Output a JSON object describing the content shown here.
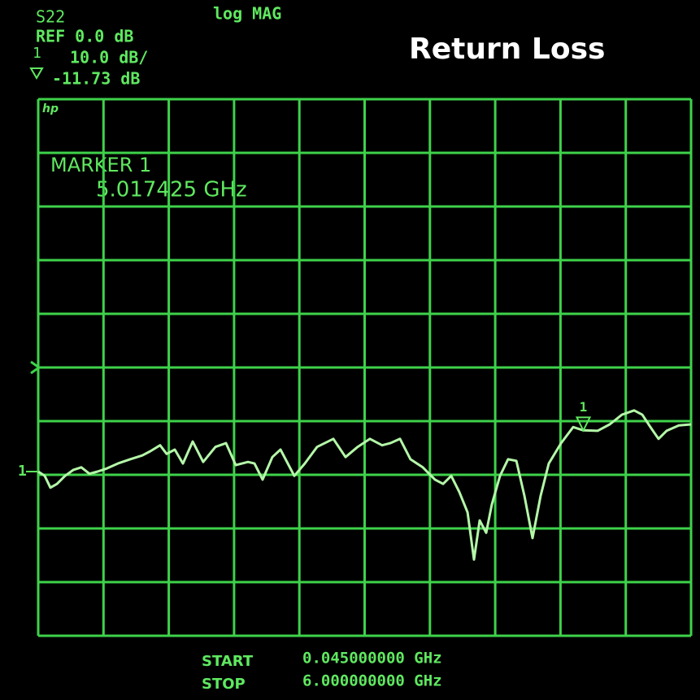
{
  "chart_data": {
    "type": "line",
    "title": "Return Loss",
    "parameter": "S22",
    "format": "log MAG",
    "reference": "REF 0.0 dB",
    "channel": "1",
    "scale": "10.0 dB/",
    "marker_readout": "-11.73 dB",
    "logo": "hp",
    "marker_title": "MARKER 1",
    "marker_frequency": "5.017425 GHz",
    "start_label": "START",
    "start_value": "0.045000000 GHz",
    "stop_label": "STOP",
    "stop_value": "6.000000000 GHz",
    "trace_label": "1",
    "color": "#b4f7a8",
    "grid_color": "#3ed24a",
    "xlim": [
      0.045,
      6.0
    ],
    "ylim": [
      -50,
      50
    ],
    "reference_level": 0,
    "marker": {
      "label": "1",
      "x": 5.017425,
      "value": -11.73
    },
    "x": [
      0.045,
      0.104,
      0.156,
      0.216,
      0.29,
      0.364,
      0.438,
      0.512,
      0.586,
      0.661,
      0.772,
      0.883,
      0.994,
      1.068,
      1.157,
      1.217,
      1.291,
      1.365,
      1.454,
      1.55,
      1.662,
      1.758,
      1.847,
      1.958,
      2.018,
      2.092,
      2.181,
      2.255,
      2.381,
      2.477,
      2.589,
      2.737,
      2.848,
      2.959,
      3.071,
      3.182,
      3.256,
      3.345,
      3.441,
      3.553,
      3.664,
      3.738,
      3.812,
      3.886,
      3.961,
      4.02,
      4.072,
      4.131,
      4.183,
      4.257,
      4.331,
      4.406,
      4.48,
      4.554,
      4.628,
      4.702,
      4.814,
      4.925,
      5.014,
      5.147,
      5.258,
      5.37,
      5.481,
      5.555,
      5.629,
      5.703,
      5.777,
      5.889,
      6.0
    ],
    "values": [
      -19.4,
      -20.2,
      -22.4,
      -21.7,
      -20.2,
      -19.1,
      -18.6,
      -19.8,
      -19.4,
      -18.9,
      -17.9,
      -17.1,
      -16.4,
      -15.6,
      -14.5,
      -16.1,
      -15.3,
      -17.9,
      -13.8,
      -17.6,
      -14.8,
      -14.1,
      -18.2,
      -17.6,
      -17.9,
      -20.9,
      -16.7,
      -15.3,
      -20.2,
      -17.9,
      -14.8,
      -13.3,
      -16.7,
      -14.8,
      -13.3,
      -14.5,
      -14.1,
      -13.3,
      -17.1,
      -18.6,
      -20.9,
      -21.7,
      -20.2,
      -23.2,
      -27.0,
      -35.8,
      -28.5,
      -30.8,
      -25.5,
      -20.2,
      -17.1,
      -17.4,
      -23.9,
      -31.8,
      -23.9,
      -17.9,
      -14.1,
      -11.1,
      -11.7,
      -11.8,
      -10.6,
      -8.8,
      -8.0,
      -8.8,
      -11.1,
      -13.3,
      -11.8,
      -10.8,
      -10.6
    ]
  }
}
